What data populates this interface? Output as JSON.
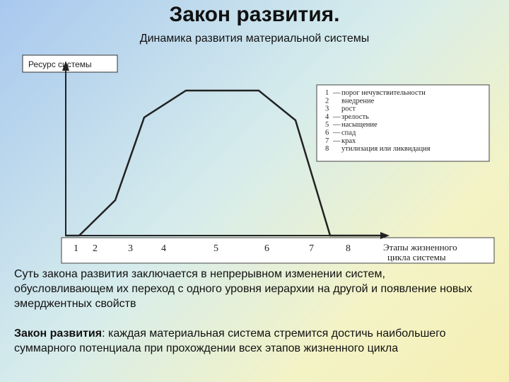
{
  "title": "Закон развития.",
  "subtitle": "Динамика развития материальной системы",
  "chart": {
    "ylabel": "Ресурс системы",
    "xlabel_line1": "Этапы жизненного",
    "xlabel_line2": "цикла системы",
    "axis_numbers": [
      "1",
      "2",
      "3",
      "4",
      "5",
      "6",
      "7",
      "8"
    ],
    "legend": [
      {
        "num": "1",
        "dash": "—",
        "text": "порог нечувствительности"
      },
      {
        "num": "2",
        "dash": "",
        "text": "внедрение"
      },
      {
        "num": "3",
        "dash": "",
        "text": "рост"
      },
      {
        "num": "4",
        "dash": "—",
        "text": "зрелость"
      },
      {
        "num": "5",
        "dash": "—",
        "text": "насыщение"
      },
      {
        "num": "6",
        "dash": "—",
        "text": "спад"
      },
      {
        "num": "7",
        "dash": "—",
        "text": "крах"
      },
      {
        "num": "8",
        "dash": "",
        "text": "утилизация или ликвидация"
      }
    ]
  },
  "paragraph1": "Суть закона развития заключается в непрерывном изменении систем, обусловливающем их переход с одного уровня иерархии на другой и появление новых эмерджентных свойств",
  "paragraph2_term": "Закон развития",
  "paragraph2_text": ": каждая материальная система стремится достичь наибольшего суммарного потенциала при прохождении всех этапов жизненного цикла"
}
